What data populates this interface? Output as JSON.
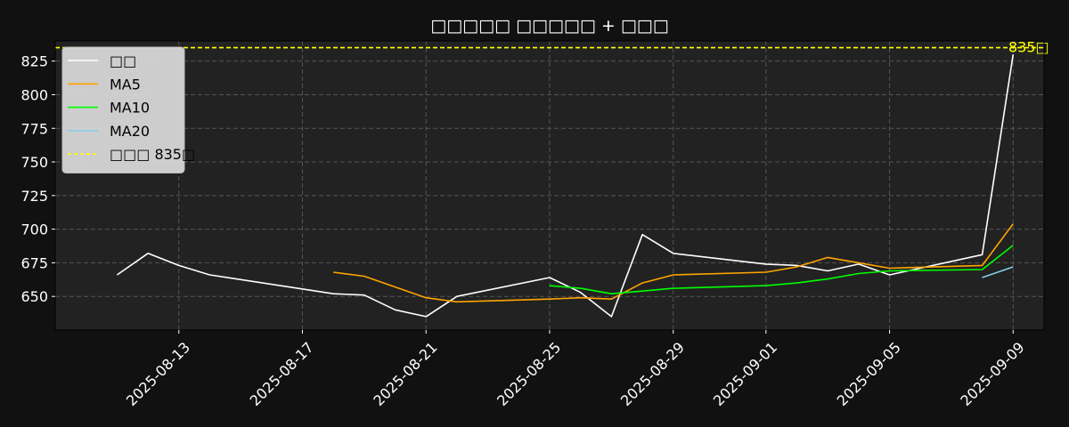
{
  "chart_data": {
    "type": "line",
    "title": "□□□□□ □□□□□ + □□□",
    "xlabel": "",
    "ylabel": "",
    "x_ticks": [
      "2025-08-13",
      "2025-08-17",
      "2025-08-21",
      "2025-08-25",
      "2025-08-29",
      "2025-09-01",
      "2025-09-05",
      "2025-09-09"
    ],
    "y_ticks": [
      650,
      675,
      700,
      725,
      750,
      775,
      800,
      825
    ],
    "xlim": [
      "2025-08-09",
      "2025-09-10"
    ],
    "ylim": [
      625,
      840
    ],
    "grid": true,
    "legend_position": "top-left",
    "series": [
      {
        "name": "□□",
        "color": "#ffffff",
        "x": [
          "2025-08-11",
          "2025-08-12",
          "2025-08-13",
          "2025-08-14",
          "2025-08-18",
          "2025-08-19",
          "2025-08-20",
          "2025-08-21",
          "2025-08-22",
          "2025-08-25",
          "2025-08-26",
          "2025-08-27",
          "2025-08-28",
          "2025-08-29",
          "2025-09-01",
          "2025-09-02",
          "2025-09-03",
          "2025-09-04",
          "2025-09-05",
          "2025-09-08",
          "2025-09-09"
        ],
        "values": [
          666,
          682,
          673,
          666,
          652,
          651,
          640,
          635,
          650,
          664,
          653,
          635,
          696,
          682,
          674,
          673,
          669,
          674,
          666,
          681,
          830
        ]
      },
      {
        "name": "MA5",
        "color": "#ffa500",
        "x": [
          "2025-08-18",
          "2025-08-19",
          "2025-08-20",
          "2025-08-21",
          "2025-08-22",
          "2025-08-25",
          "2025-08-26",
          "2025-08-27",
          "2025-08-28",
          "2025-08-29",
          "2025-09-01",
          "2025-09-02",
          "2025-09-03",
          "2025-09-04",
          "2025-09-05",
          "2025-09-08",
          "2025-09-09"
        ],
        "values": [
          668,
          665,
          657,
          649,
          646,
          648,
          649,
          648,
          660,
          666,
          668,
          672,
          679,
          675,
          671,
          673,
          704
        ]
      },
      {
        "name": "MA10",
        "color": "#00ff00",
        "x": [
          "2025-08-25",
          "2025-08-26",
          "2025-08-27",
          "2025-08-28",
          "2025-08-29",
          "2025-09-01",
          "2025-09-02",
          "2025-09-03",
          "2025-09-04",
          "2025-09-05",
          "2025-09-08",
          "2025-09-09"
        ],
        "values": [
          658,
          656,
          652,
          654,
          656,
          658,
          660,
          663,
          667,
          669,
          670,
          688
        ]
      },
      {
        "name": "MA20",
        "color": "#87ceeb",
        "x": [
          "2025-09-08",
          "2025-09-09"
        ],
        "values": [
          664,
          672
        ]
      }
    ],
    "reference_line": {
      "name": "□□□ 835□",
      "value": 835,
      "color": "#ffff00",
      "label": "835□"
    }
  }
}
